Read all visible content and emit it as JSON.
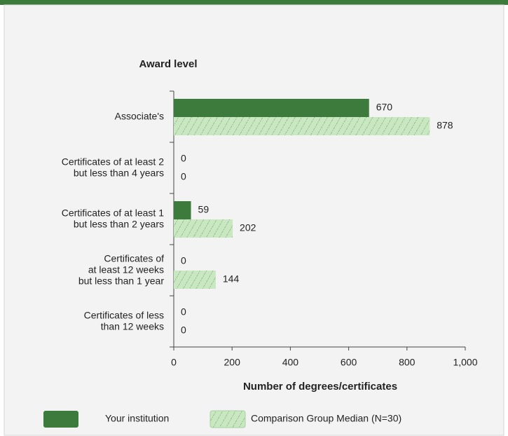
{
  "chart_data": {
    "type": "barh",
    "title": "Award level",
    "xlabel": "Number of degrees/certificates",
    "categories": [
      "Associate's",
      "Certificates of at least 2\nbut less than 4 years",
      "Certificates of at least 1\nbut less than 2 years",
      "Certificates of\nat least 12 weeks\nbut less than 1 year",
      "Certificates of less\nthan 12 weeks"
    ],
    "series": [
      {
        "name": "Your institution",
        "color": "#3d7b3d",
        "values": [
          670,
          0,
          59,
          0,
          0
        ]
      },
      {
        "name": "Comparison Group Median (N=30)",
        "color": "#c9e7c1",
        "values": [
          878,
          0,
          202,
          144,
          0
        ]
      }
    ],
    "xlim": [
      0,
      1000
    ],
    "xticks": [
      0,
      200,
      400,
      600,
      800,
      {
        "value": 1000,
        "label": "1,000"
      }
    ]
  }
}
